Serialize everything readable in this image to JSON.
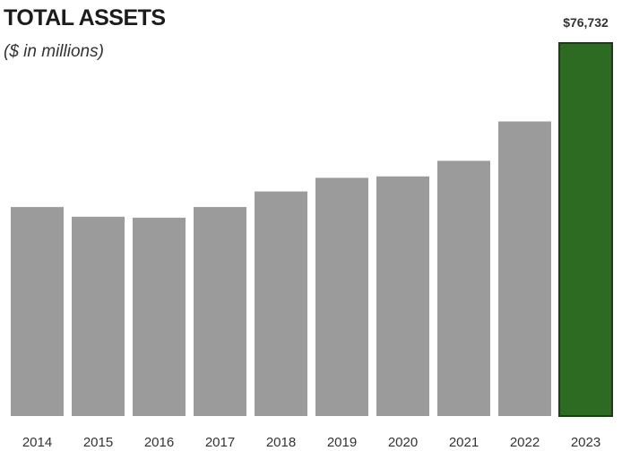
{
  "chart_data": {
    "type": "bar",
    "title": "TOTAL ASSETS",
    "subtitle": "($ in millions)",
    "categories": [
      "2014",
      "2015",
      "2016",
      "2017",
      "2018",
      "2019",
      "2020",
      "2021",
      "2022",
      "2023"
    ],
    "values": [
      43000,
      41000,
      40800,
      43000,
      46200,
      49000,
      49300,
      52500,
      60600,
      76732
    ],
    "data_labels": [
      {
        "category": "2023",
        "text": "$76,732"
      }
    ],
    "highlight": "2023",
    "colors": {
      "bar": "#9b9b9b",
      "highlight": "#2e6b22",
      "highlight_edge": "#1a3d12"
    },
    "ylim": [
      0,
      76732
    ],
    "grid": false,
    "legend": "none"
  }
}
